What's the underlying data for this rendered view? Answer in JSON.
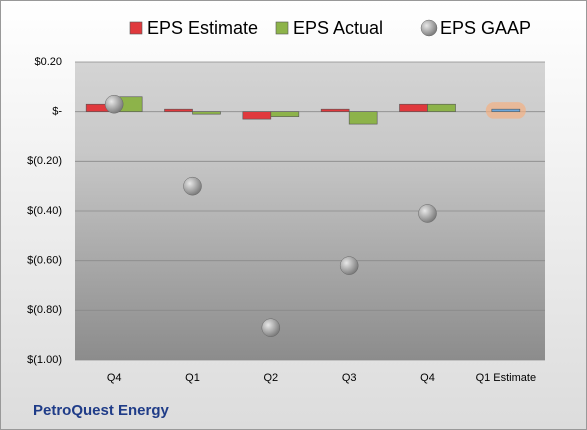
{
  "chart_data": {
    "type": "bar",
    "footer": "PetroQuest Energy",
    "categories": [
      "Q4",
      "Q1",
      "Q2",
      "Q3",
      "Q4",
      "Q1 Estimate"
    ],
    "series": [
      {
        "name": "EPS Estimate",
        "kind": "bar",
        "color": "#e0393d",
        "point_colors": [
          "#e0393d",
          "#e0393d",
          "#e0393d",
          "#e0393d",
          "#e0393d",
          "#6fa8dc"
        ],
        "values": [
          0.03,
          0.01,
          -0.03,
          0.01,
          0.03,
          0.01
        ]
      },
      {
        "name": "EPS Actual",
        "kind": "bar",
        "color": "#8db34a",
        "values": [
          0.06,
          -0.01,
          -0.02,
          -0.05,
          0.03,
          null
        ]
      },
      {
        "name": "EPS GAAP",
        "kind": "bubble",
        "color": "#9e9e9e",
        "values": [
          0.03,
          -0.3,
          -0.87,
          -0.62,
          -0.41,
          null
        ]
      }
    ],
    "ylim": [
      -1.0,
      0.2
    ],
    "yticks": [
      {
        "value": 0.2,
        "label": "$0.20"
      },
      {
        "value": 0,
        "label": "$-"
      },
      {
        "value": -0.2,
        "label": "$(0.20)"
      },
      {
        "value": -0.4,
        "label": "$(0.40)"
      },
      {
        "value": -0.6,
        "label": "$(0.60)"
      },
      {
        "value": -0.8,
        "label": "$(0.80)"
      },
      {
        "value": -1.0,
        "label": "$(1.00)"
      }
    ],
    "grid": true
  }
}
